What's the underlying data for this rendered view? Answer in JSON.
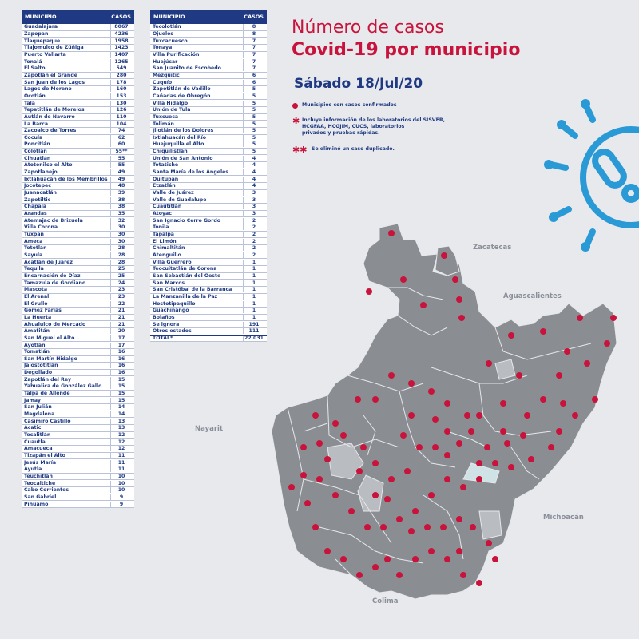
{
  "table_left": {
    "header_municipio": "MUNICIPIO",
    "header_casos": "CASOS",
    "rows": [
      {
        "m": "Guadalajara",
        "c": "8067"
      },
      {
        "m": "Zapopan",
        "c": "4236"
      },
      {
        "m": "Tlaquepaque",
        "c": "1958"
      },
      {
        "m": "Tlajomulco de Zúñiga",
        "c": "1423"
      },
      {
        "m": "Puerto Vallarta",
        "c": "1407"
      },
      {
        "m": "Tonalá",
        "c": "1265"
      },
      {
        "m": "El Salto",
        "c": "549"
      },
      {
        "m": "Zapotlán el Grande",
        "c": "280"
      },
      {
        "m": "San Juan de los Lagos",
        "c": "178"
      },
      {
        "m": "Lagos de Moreno",
        "c": "160"
      },
      {
        "m": "Ocotlán",
        "c": "153"
      },
      {
        "m": "Tala",
        "c": "130"
      },
      {
        "m": "Tepatitlán de Morelos",
        "c": "126"
      },
      {
        "m": "Autlán de Navarro",
        "c": "110"
      },
      {
        "m": "La Barca",
        "c": "104"
      },
      {
        "m": "Zacoalco de Torres",
        "c": "74"
      },
      {
        "m": "Cocula",
        "c": "62"
      },
      {
        "m": "Poncitlán",
        "c": "60"
      },
      {
        "m": "Colotlán",
        "c": "55**"
      },
      {
        "m": "Cihuatlán",
        "c": "55"
      },
      {
        "m": "Atotonilco el Alto",
        "c": "55"
      },
      {
        "m": "Zapotlanejo",
        "c": "49"
      },
      {
        "m": "Ixtlahuacán de los Membrillos",
        "c": "49"
      },
      {
        "m": "Jocotepec",
        "c": "48"
      },
      {
        "m": "Juanacatlán",
        "c": "39"
      },
      {
        "m": "Zapotiltic",
        "c": "38"
      },
      {
        "m": "Chapala",
        "c": "38"
      },
      {
        "m": "Arandas",
        "c": "35"
      },
      {
        "m": "Atemajac de Brizuela",
        "c": "32"
      },
      {
        "m": "Villa Corona",
        "c": "30"
      },
      {
        "m": "Tuxpan",
        "c": "30"
      },
      {
        "m": "Ameca",
        "c": "30"
      },
      {
        "m": "Tototlán",
        "c": "28"
      },
      {
        "m": "Sayula",
        "c": "28"
      },
      {
        "m": "Acatlán de Juárez",
        "c": "28"
      },
      {
        "m": "Tequila",
        "c": "25"
      },
      {
        "m": "Encarnación de Díaz",
        "c": "25"
      },
      {
        "m": "Tamazula de Gordiano",
        "c": "24"
      },
      {
        "m": "Mascota",
        "c": "23"
      },
      {
        "m": "El Arenal",
        "c": "23"
      },
      {
        "m": "El Grullo",
        "c": "22"
      },
      {
        "m": "Gómez Farías",
        "c": "21"
      },
      {
        "m": "La Huerta",
        "c": "21"
      },
      {
        "m": "Ahualulco de Mercado",
        "c": "21"
      },
      {
        "m": "Amatitán",
        "c": "20"
      },
      {
        "m": "San Miguel el Alto",
        "c": "17"
      },
      {
        "m": "Ayotlán",
        "c": "17"
      },
      {
        "m": "Tomatlán",
        "c": "16"
      },
      {
        "m": "San Martín Hidalgo",
        "c": "16"
      },
      {
        "m": "Jalostotitlán",
        "c": "16"
      },
      {
        "m": "Degollado",
        "c": "16"
      },
      {
        "m": "Zapotlán del Rey",
        "c": "15"
      },
      {
        "m": "Yahualica de González Gallo",
        "c": "15"
      },
      {
        "m": "Talpa de Allende",
        "c": "15"
      },
      {
        "m": "Jamay",
        "c": "15"
      },
      {
        "m": "San Julián",
        "c": "14"
      },
      {
        "m": "Magdalena",
        "c": "14"
      },
      {
        "m": "Casimiro Castillo",
        "c": "13"
      },
      {
        "m": "Acatic",
        "c": "13"
      },
      {
        "m": "Tecalitlán",
        "c": "12"
      },
      {
        "m": "Cuautla",
        "c": "12"
      },
      {
        "m": "Amacueca",
        "c": "12"
      },
      {
        "m": "Tizapán el Alto",
        "c": "11"
      },
      {
        "m": "Jesús María",
        "c": "11"
      },
      {
        "m": "Ayutla",
        "c": "11"
      },
      {
        "m": "Teuchitlán",
        "c": "10"
      },
      {
        "m": "Teocaltiche",
        "c": "10"
      },
      {
        "m": "Cabo Corrientes",
        "c": "10"
      },
      {
        "m": "San Gabriel",
        "c": "9"
      },
      {
        "m": "Pihuamo",
        "c": "9"
      }
    ]
  },
  "table_right": {
    "header_municipio": "MUNICIPIO",
    "header_casos": "CASOS",
    "rows": [
      {
        "m": "Tecolotlán",
        "c": "8"
      },
      {
        "m": "Ojuelos",
        "c": "8"
      },
      {
        "m": "Tuxcacuesco",
        "c": "7"
      },
      {
        "m": "Tonaya",
        "c": "7"
      },
      {
        "m": "Villa Purificación",
        "c": "7"
      },
      {
        "m": "Huejúcar",
        "c": "7"
      },
      {
        "m": "San Juanito de Escobedo",
        "c": "7"
      },
      {
        "m": "Mezquitic",
        "c": "6"
      },
      {
        "m": "Cuquío",
        "c": "6"
      },
      {
        "m": "Zapotitlán de Vadillo",
        "c": "5"
      },
      {
        "m": "Cañadas de Obregón",
        "c": "5"
      },
      {
        "m": "Villa Hidalgo",
        "c": "5"
      },
      {
        "m": "Unión de Tula",
        "c": "5"
      },
      {
        "m": "Tuxcueca",
        "c": "5"
      },
      {
        "m": "Tolimán",
        "c": "5"
      },
      {
        "m": "Jilotlán de los Dolores",
        "c": "5"
      },
      {
        "m": "Ixtlahuacán del Río",
        "c": "5"
      },
      {
        "m": "Huejuquilla el Alto",
        "c": "5"
      },
      {
        "m": "Chiquilistlán",
        "c": "5"
      },
      {
        "m": "Unión de San Antonio",
        "c": "4"
      },
      {
        "m": "Totatiche",
        "c": "4"
      },
      {
        "m": "Santa María de los Ángeles",
        "c": "4"
      },
      {
        "m": "Quitupan",
        "c": "4"
      },
      {
        "m": "Etzatlán",
        "c": "4"
      },
      {
        "m": "Valle de Juárez",
        "c": "3"
      },
      {
        "m": "Valle de Guadalupe",
        "c": "3"
      },
      {
        "m": "Cuautitlán",
        "c": "3"
      },
      {
        "m": "Atoyac",
        "c": "3"
      },
      {
        "m": "San Ignacio Cerro Gordo",
        "c": "2"
      },
      {
        "m": "Tonila",
        "c": "2"
      },
      {
        "m": "Tapalpa",
        "c": "2"
      },
      {
        "m": "El Limón",
        "c": "2"
      },
      {
        "m": "Chimaltitán",
        "c": "2"
      },
      {
        "m": "Atenguillo",
        "c": "2"
      },
      {
        "m": "Villa Guerrero",
        "c": "1"
      },
      {
        "m": "Teocuitatlán de Corona",
        "c": "1"
      },
      {
        "m": "San Sebastián del Oeste",
        "c": "1"
      },
      {
        "m": "San Marcos",
        "c": "1"
      },
      {
        "m": "San Cristóbal de la Barranca",
        "c": "1"
      },
      {
        "m": "La Manzanilla de la Paz",
        "c": "1"
      },
      {
        "m": "Hostotipaquillo",
        "c": "1"
      },
      {
        "m": "Guachinango",
        "c": "1"
      },
      {
        "m": "Bolaños",
        "c": "1"
      },
      {
        "m": "Se ignora",
        "c": "191"
      },
      {
        "m": "Otros estados",
        "c": "111"
      }
    ],
    "total_label": "TOTAL*",
    "total_value": "22,031"
  },
  "title_line1": "Número de casos",
  "title_line2": "Covid-19 por municipio",
  "date": "Sábado 18/Jul/20",
  "legend": {
    "dot_text": "Municipios con casos confirmados",
    "asterisk_lines": [
      "Incluye información de los laboratorios del SISVER,",
      "HCGFAA, HCGJIM, CUCS, laboratorios",
      "privados y pruebas rápidas."
    ],
    "double_asterisk_text": "Se eliminó un caso duplicado."
  },
  "states": {
    "zacatecas": "Zacatecas",
    "aguascalientes": "Aguascalientes",
    "nayarit": "Nayarit",
    "michoacan": "Michoacán",
    "colima": "Colima"
  },
  "colors": {
    "navy": "#1f3a82",
    "red": "#c8143c",
    "map_gray": "#8a8d92",
    "map_light": "#b9bcc0",
    "lake": "#cfe3e6",
    "virus_blue": "#2a9ad6"
  },
  "icons": [
    "virus-icon"
  ]
}
